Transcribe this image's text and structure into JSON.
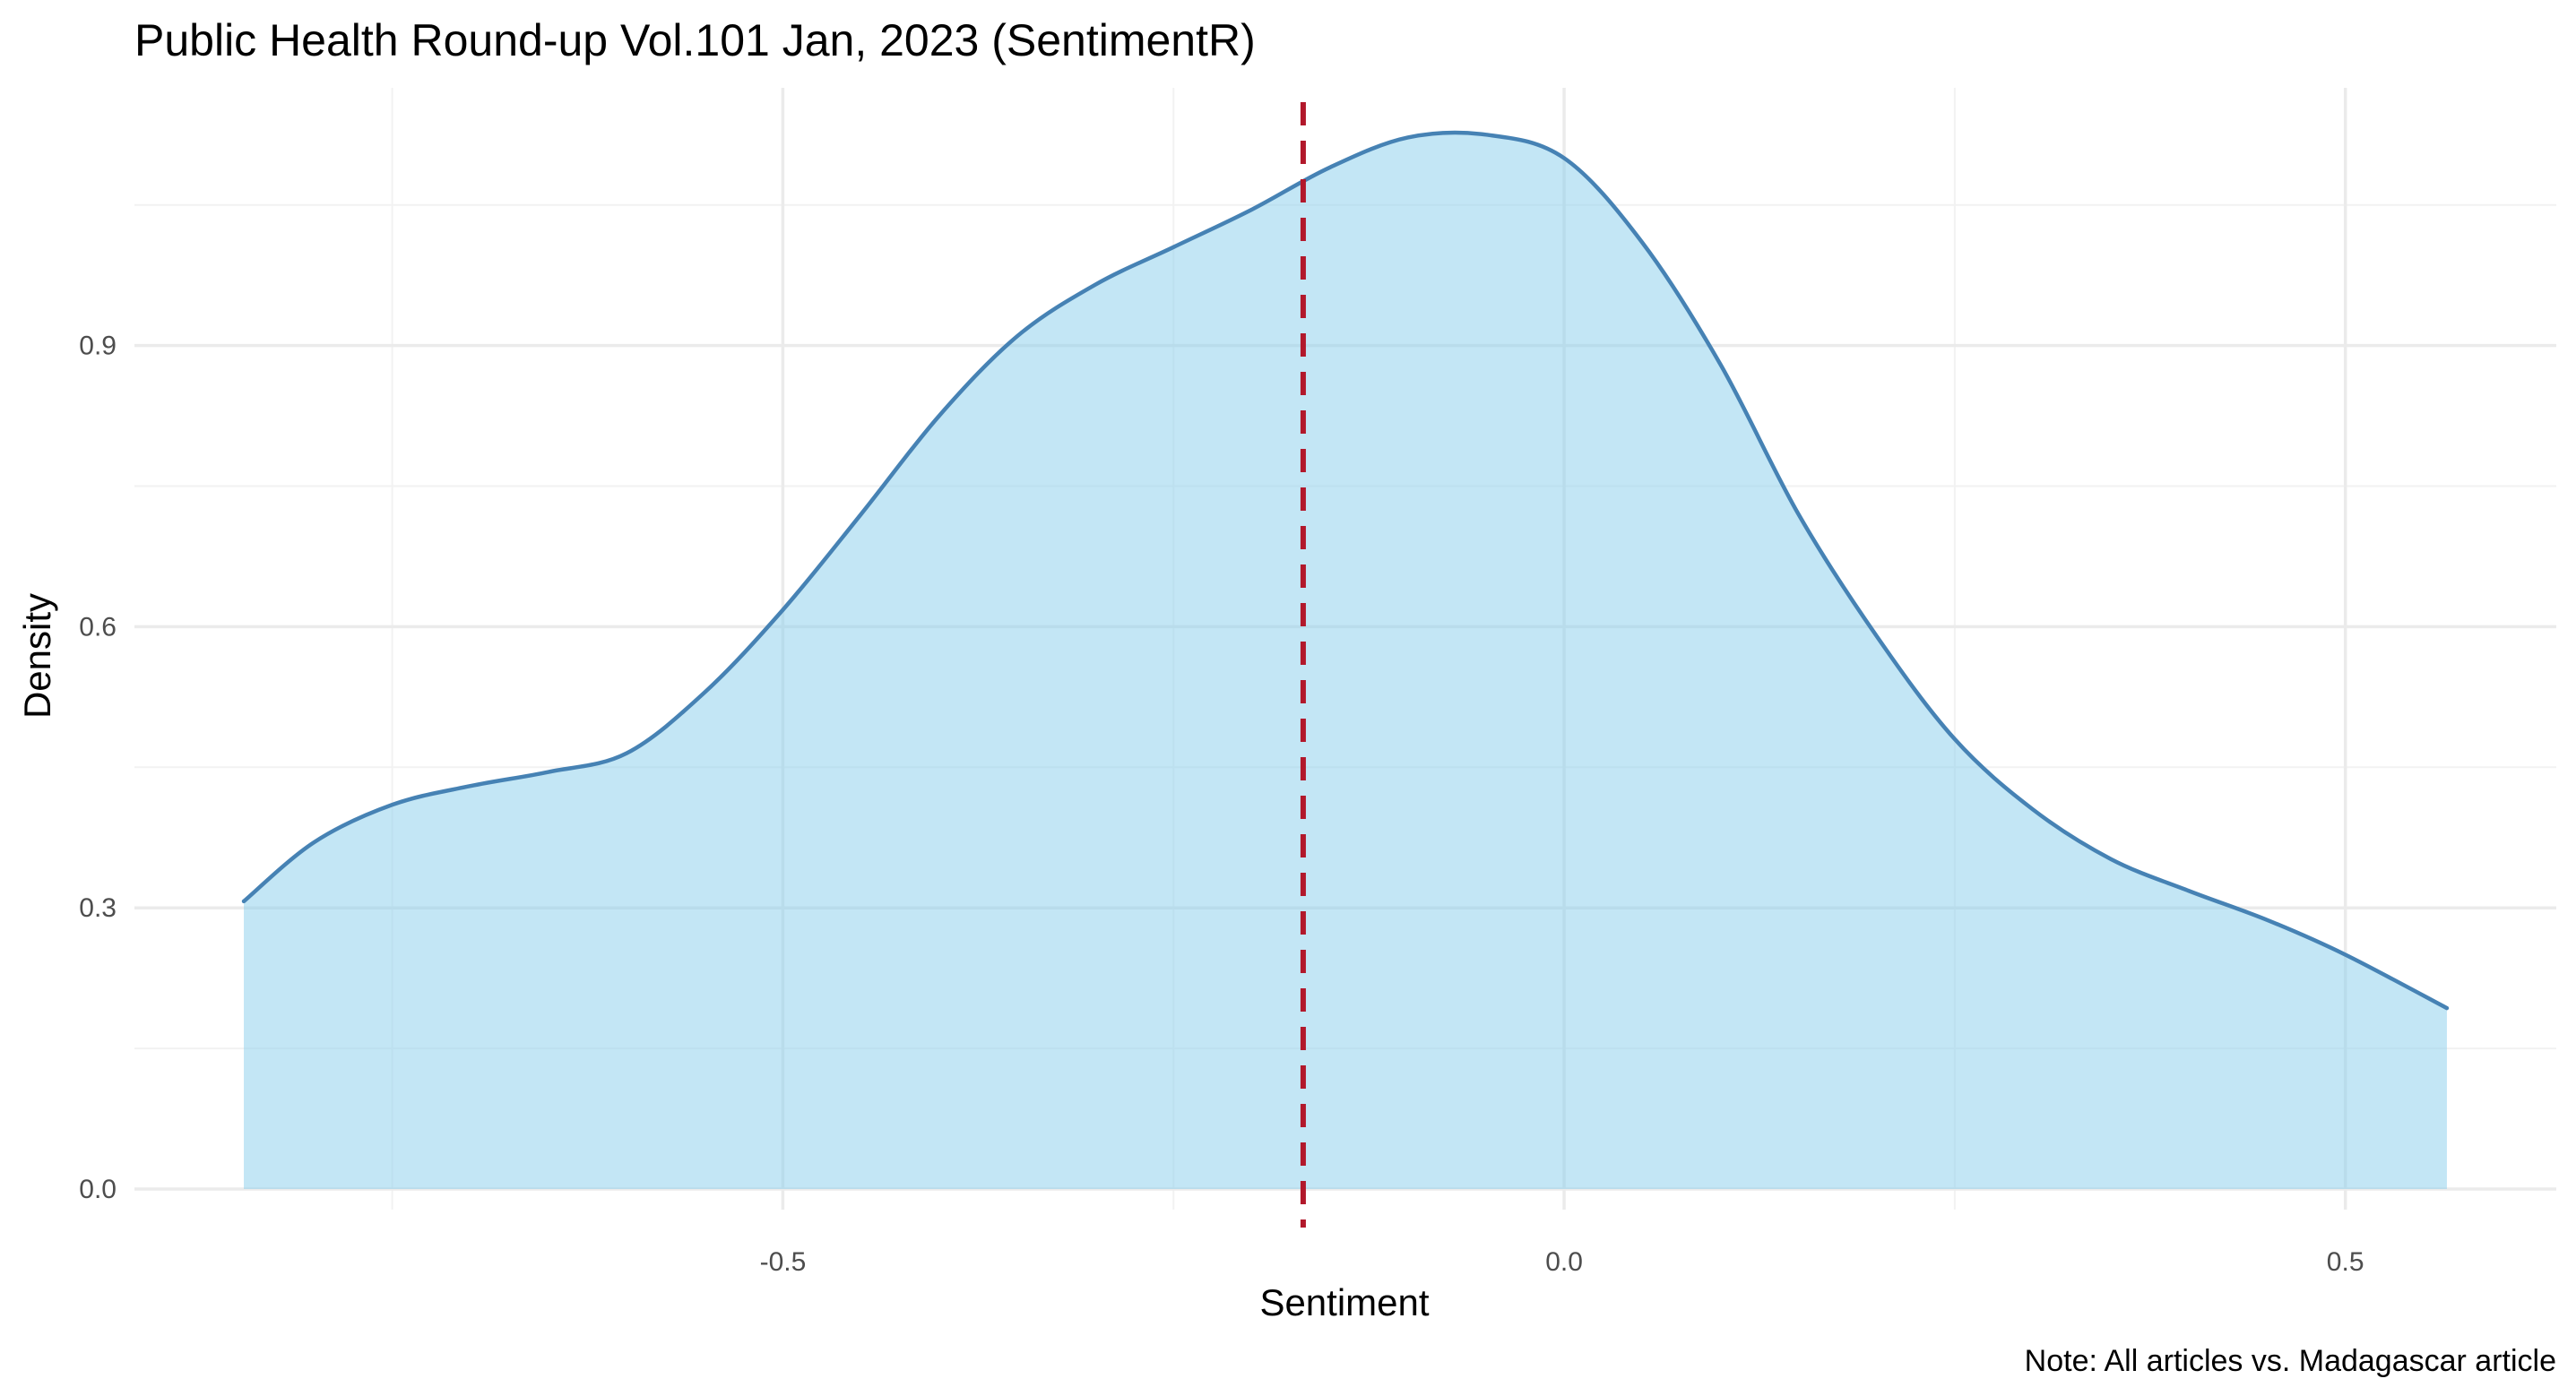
{
  "chart_data": {
    "type": "area",
    "title": "Public Health Round-up Vol.101 Jan, 2023 (SentimentR)",
    "subtitle": "",
    "xlabel": "Sentiment",
    "ylabel": "Density",
    "caption": "Note: All articles vs. Madagascar article",
    "xlim": [
      -0.915,
      0.635
    ],
    "ylim": [
      -0.022,
      1.175
    ],
    "x_ticks": [
      {
        "value": -0.5,
        "label": "-0.5"
      },
      {
        "value": 0.0,
        "label": "0.0"
      },
      {
        "value": 0.5,
        "label": "0.5"
      }
    ],
    "y_ticks": [
      {
        "value": 0.0,
        "label": "0.0"
      },
      {
        "value": 0.3,
        "label": "0.3"
      },
      {
        "value": 0.6,
        "label": "0.6"
      },
      {
        "value": 0.9,
        "label": "0.9"
      }
    ],
    "x_minor_ticks": [
      -0.75,
      -0.25,
      0.25
    ],
    "y_minor_ticks": [
      0.15,
      0.45,
      0.75,
      1.05
    ],
    "grid": true,
    "legend": "none",
    "series": [
      {
        "x": [
          -0.845,
          -0.8,
          -0.75,
          -0.7,
          -0.65,
          -0.6,
          -0.55,
          -0.5,
          -0.45,
          -0.4,
          -0.35,
          -0.3,
          -0.25,
          -0.2,
          -0.15,
          -0.1,
          -0.05,
          0.0,
          0.05,
          0.1,
          0.15,
          0.2,
          0.25,
          0.3,
          0.35,
          0.4,
          0.45,
          0.5,
          0.565
        ],
        "y": [
          0.307,
          0.37,
          0.41,
          0.43,
          0.445,
          0.465,
          0.53,
          0.618,
          0.72,
          0.825,
          0.91,
          0.965,
          1.005,
          1.045,
          1.09,
          1.122,
          1.125,
          1.1,
          1.01,
          0.88,
          0.72,
          0.59,
          0.48,
          0.405,
          0.352,
          0.318,
          0.287,
          0.25,
          0.193
        ]
      }
    ],
    "reference_line": {
      "x": -0.167,
      "orientation": "vertical",
      "style": "dashed"
    },
    "colors": {
      "fill": "#87ceeb",
      "fill_opacity": 0.5,
      "line": "#4682b4",
      "reference_line": "#b2182b",
      "grid_major": "#ebebeb",
      "grid_minor": "#f2f2f2",
      "tick_text": "#4d4d4d"
    }
  }
}
